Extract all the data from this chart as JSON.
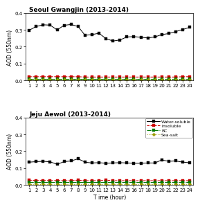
{
  "hours": [
    1,
    2,
    3,
    4,
    5,
    6,
    7,
    8,
    9,
    10,
    11,
    12,
    13,
    14,
    15,
    16,
    17,
    18,
    19,
    20,
    21,
    22,
    23,
    24
  ],
  "seoul_water_soluble": [
    0.298,
    0.32,
    0.33,
    0.328,
    0.3,
    0.327,
    0.332,
    0.32,
    0.268,
    0.272,
    0.28,
    0.248,
    0.234,
    0.24,
    0.258,
    0.26,
    0.256,
    0.252,
    0.258,
    0.272,
    0.278,
    0.29,
    0.302,
    0.315
  ],
  "seoul_insoluble": [
    0.022,
    0.022,
    0.022,
    0.022,
    0.022,
    0.022,
    0.022,
    0.022,
    0.02,
    0.02,
    0.02,
    0.02,
    0.02,
    0.02,
    0.02,
    0.02,
    0.02,
    0.02,
    0.02,
    0.02,
    0.02,
    0.02,
    0.022,
    0.022
  ],
  "seoul_bc": [
    0.008,
    0.008,
    0.008,
    0.008,
    0.008,
    0.008,
    0.008,
    0.008,
    0.008,
    0.008,
    0.008,
    0.008,
    0.008,
    0.008,
    0.008,
    0.008,
    0.008,
    0.008,
    0.008,
    0.008,
    0.008,
    0.008,
    0.008,
    0.008
  ],
  "seoul_sea_salt": [
    0.003,
    0.003,
    0.003,
    0.003,
    0.003,
    0.003,
    0.003,
    0.003,
    0.003,
    0.003,
    0.003,
    0.003,
    0.003,
    0.003,
    0.003,
    0.003,
    0.003,
    0.003,
    0.003,
    0.003,
    0.003,
    0.003,
    0.003,
    0.003
  ],
  "jeju_water_soluble": [
    0.135,
    0.138,
    0.14,
    0.137,
    0.122,
    0.138,
    0.142,
    0.155,
    0.135,
    0.13,
    0.132,
    0.128,
    0.13,
    0.132,
    0.13,
    0.128,
    0.128,
    0.13,
    0.13,
    0.148,
    0.14,
    0.142,
    0.135,
    0.132
  ],
  "jeju_insoluble": [
    0.028,
    0.026,
    0.026,
    0.025,
    0.026,
    0.025,
    0.025,
    0.028,
    0.025,
    0.025,
    0.025,
    0.028,
    0.025,
    0.025,
    0.025,
    0.025,
    0.025,
    0.025,
    0.025,
    0.025,
    0.025,
    0.025,
    0.025,
    0.025
  ],
  "jeju_bc": [
    0.015,
    0.015,
    0.015,
    0.015,
    0.015,
    0.015,
    0.015,
    0.015,
    0.015,
    0.015,
    0.015,
    0.015,
    0.015,
    0.015,
    0.015,
    0.015,
    0.015,
    0.015,
    0.015,
    0.015,
    0.015,
    0.015,
    0.015,
    0.015
  ],
  "jeju_sea_salt": [
    0.004,
    0.004,
    0.004,
    0.004,
    0.004,
    0.004,
    0.004,
    0.004,
    0.004,
    0.004,
    0.004,
    0.004,
    0.004,
    0.004,
    0.004,
    0.004,
    0.004,
    0.004,
    0.004,
    0.004,
    0.004,
    0.004,
    0.004,
    0.004
  ],
  "title1": "Seoul Gwangjin (2013-2014)",
  "title2": "Jeju Aewol (2013-2014)",
  "xlabel": "T ime (hour)",
  "ylabel": "AOD (550nm)",
  "ylim": [
    0.0,
    0.4
  ],
  "yticks": [
    0.0,
    0.1,
    0.2,
    0.3,
    0.4
  ],
  "color_water_soluble": "#000000",
  "color_insoluble": "#cc0000",
  "color_bc": "#007700",
  "color_sea_salt": "#999900",
  "legend_labels": [
    "Water-soluble",
    "Insoluble",
    "BC",
    "Sea-salt"
  ],
  "markersize": 2.5,
  "linewidth": 0.7,
  "tick_fontsize": 5,
  "label_fontsize": 5.5,
  "title_fontsize": 6.5,
  "legend_fontsize": 4.5
}
